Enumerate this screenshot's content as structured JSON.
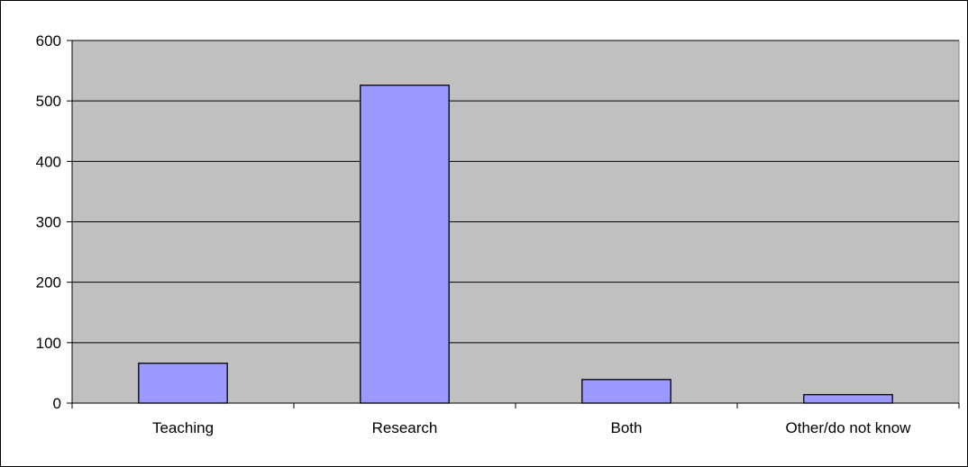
{
  "chart_data": {
    "type": "bar",
    "categories": [
      "Teaching",
      "Research",
      "Both",
      "Other/do not know"
    ],
    "values": [
      66,
      526,
      39,
      14
    ],
    "ylim": [
      0,
      600
    ],
    "yticks": [
      0,
      100,
      200,
      300,
      400,
      500,
      600
    ],
    "grid": true,
    "legend": "none",
    "colors": {
      "bar_fill": "#9999ff",
      "plot_background": "#c0c0c0",
      "gridline": "#000000"
    }
  }
}
